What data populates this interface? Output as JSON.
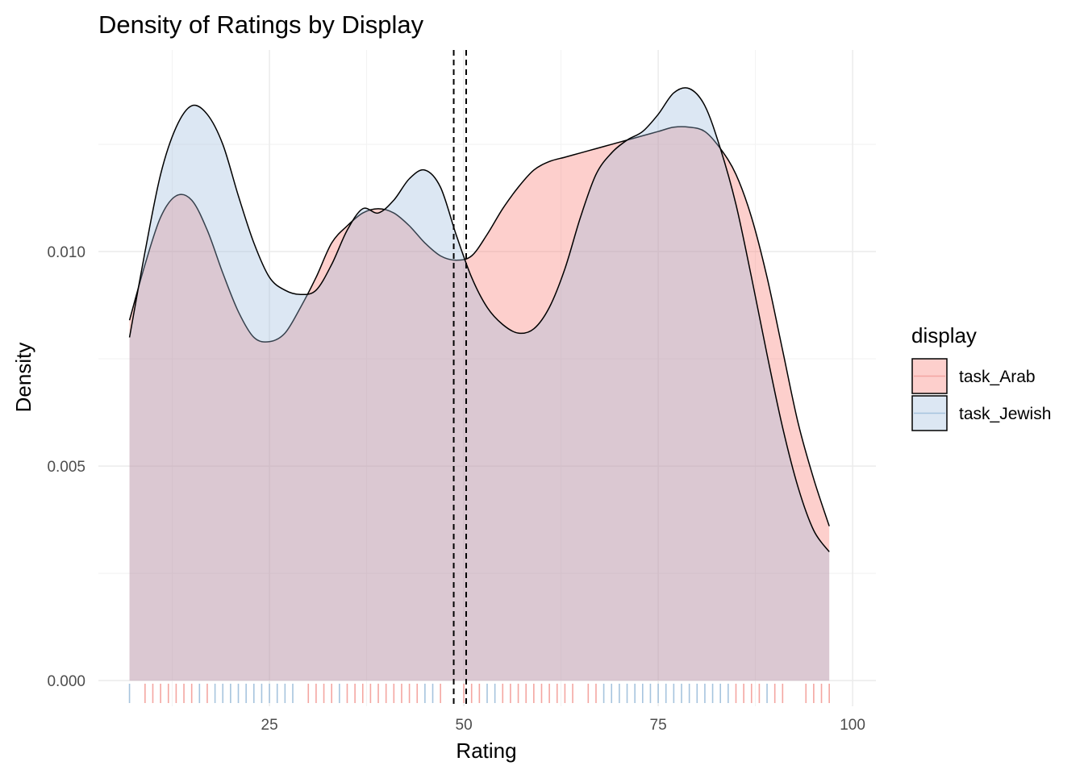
{
  "chart_data": {
    "type": "area",
    "title": "Density of Ratings by Display",
    "xlabel": "Rating",
    "ylabel": "Density",
    "xlim": [
      3,
      103
    ],
    "ylim": [
      -0.0006,
      0.0147
    ],
    "x_ticks": [
      25,
      50,
      75,
      100
    ],
    "x_tick_labels": [
      "25",
      "50",
      "75",
      "100"
    ],
    "y_ticks": [
      0.0,
      0.005,
      0.01
    ],
    "y_tick_labels": [
      "0.000",
      "0.005",
      "0.010"
    ],
    "grid": true,
    "legend": {
      "title": "display",
      "position": "right",
      "entries": [
        "task_Arab",
        "task_Jewish"
      ]
    },
    "mean_lines": [
      48.7,
      50.3
    ],
    "series": [
      {
        "name": "task_Arab",
        "fill": "#f8766d",
        "rug_color": "#f4a6a1",
        "x": [
          7.0,
          9.0,
          11.0,
          13.0,
          15.0,
          17.0,
          19.0,
          21.0,
          23.0,
          25.0,
          27.0,
          29.0,
          31.0,
          33.0,
          35.0,
          37.0,
          39.0,
          41.0,
          43.0,
          45.0,
          47.0,
          49.0,
          51.0,
          53.0,
          55.0,
          57.0,
          59.0,
          61.0,
          63.0,
          65.0,
          67.0,
          69.0,
          71.0,
          73.0,
          75.0,
          77.0,
          79.0,
          81.0,
          83.0,
          85.0,
          87.0,
          89.0,
          91.0,
          93.0,
          95.0,
          97.0
        ],
        "y": [
          0.0084,
          0.0097,
          0.0108,
          0.0113,
          0.0112,
          0.0105,
          0.0095,
          0.0086,
          0.008,
          0.0079,
          0.0081,
          0.0087,
          0.0094,
          0.0102,
          0.0106,
          0.0109,
          0.011,
          0.0109,
          0.0106,
          0.0102,
          0.0099,
          0.0098,
          0.0099,
          0.0104,
          0.011,
          0.0115,
          0.0119,
          0.0121,
          0.0122,
          0.0123,
          0.0124,
          0.0125,
          0.0126,
          0.0127,
          0.0128,
          0.0129,
          0.0129,
          0.0128,
          0.0124,
          0.0118,
          0.0108,
          0.0094,
          0.0077,
          0.006,
          0.0047,
          0.0036
        ]
      },
      {
        "name": "task_Jewish",
        "fill": "#9ab9dc",
        "rug_color": "#a6c4de",
        "x": [
          7.0,
          9.0,
          11.0,
          13.0,
          15.0,
          17.0,
          19.0,
          21.0,
          23.0,
          25.0,
          27.0,
          29.0,
          31.0,
          33.0,
          35.0,
          37.0,
          39.0,
          41.0,
          43.0,
          45.0,
          47.0,
          49.0,
          51.0,
          53.0,
          55.0,
          57.0,
          59.0,
          61.0,
          63.0,
          65.0,
          67.0,
          69.0,
          71.0,
          73.0,
          75.0,
          77.0,
          79.0,
          81.0,
          83.0,
          85.0,
          87.0,
          89.0,
          91.0,
          93.0,
          95.0,
          97.0
        ],
        "y": [
          0.008,
          0.01,
          0.0118,
          0.0129,
          0.0134,
          0.0132,
          0.0125,
          0.0113,
          0.0102,
          0.0094,
          0.0091,
          0.009,
          0.0091,
          0.0097,
          0.0105,
          0.011,
          0.0109,
          0.0112,
          0.0117,
          0.0119,
          0.0115,
          0.0104,
          0.0094,
          0.0087,
          0.0083,
          0.0081,
          0.0082,
          0.0087,
          0.0096,
          0.0108,
          0.0118,
          0.0123,
          0.0126,
          0.0128,
          0.0132,
          0.0137,
          0.0138,
          0.0134,
          0.0124,
          0.0111,
          0.0094,
          0.0076,
          0.0059,
          0.0045,
          0.0035,
          0.003
        ]
      }
    ],
    "rug": [
      {
        "x": 7,
        "series": "task_Jewish"
      },
      {
        "x": 9,
        "series": "task_Arab"
      },
      {
        "x": 10,
        "series": "task_Arab"
      },
      {
        "x": 11,
        "series": "task_Arab"
      },
      {
        "x": 12,
        "series": "task_Arab"
      },
      {
        "x": 13,
        "series": "task_Arab"
      },
      {
        "x": 14,
        "series": "task_Arab"
      },
      {
        "x": 15,
        "series": "task_Arab"
      },
      {
        "x": 16,
        "series": "task_Jewish"
      },
      {
        "x": 17,
        "series": "task_Arab"
      },
      {
        "x": 18,
        "series": "task_Jewish"
      },
      {
        "x": 19,
        "series": "task_Jewish"
      },
      {
        "x": 20,
        "series": "task_Jewish"
      },
      {
        "x": 21,
        "series": "task_Jewish"
      },
      {
        "x": 22,
        "series": "task_Jewish"
      },
      {
        "x": 23,
        "series": "task_Jewish"
      },
      {
        "x": 24,
        "series": "task_Jewish"
      },
      {
        "x": 25,
        "series": "task_Jewish"
      },
      {
        "x": 26,
        "series": "task_Jewish"
      },
      {
        "x": 27,
        "series": "task_Jewish"
      },
      {
        "x": 28,
        "series": "task_Jewish"
      },
      {
        "x": 30,
        "series": "task_Arab"
      },
      {
        "x": 31,
        "series": "task_Arab"
      },
      {
        "x": 32,
        "series": "task_Arab"
      },
      {
        "x": 33,
        "series": "task_Arab"
      },
      {
        "x": 34,
        "series": "task_Jewish"
      },
      {
        "x": 35,
        "series": "task_Arab"
      },
      {
        "x": 36,
        "series": "task_Arab"
      },
      {
        "x": 37,
        "series": "task_Arab"
      },
      {
        "x": 38,
        "series": "task_Arab"
      },
      {
        "x": 39,
        "series": "task_Arab"
      },
      {
        "x": 40,
        "series": "task_Arab"
      },
      {
        "x": 41,
        "series": "task_Arab"
      },
      {
        "x": 42,
        "series": "task_Arab"
      },
      {
        "x": 43,
        "series": "task_Arab"
      },
      {
        "x": 44,
        "series": "task_Arab"
      },
      {
        "x": 45,
        "series": "task_Jewish"
      },
      {
        "x": 46,
        "series": "task_Jewish"
      },
      {
        "x": 47,
        "series": "task_Arab"
      },
      {
        "x": 50,
        "series": "task_Arab"
      },
      {
        "x": 51,
        "series": "task_Arab"
      },
      {
        "x": 52,
        "series": "task_Arab"
      },
      {
        "x": 53,
        "series": "task_Jewish"
      },
      {
        "x": 54,
        "series": "task_Jewish"
      },
      {
        "x": 55,
        "series": "task_Arab"
      },
      {
        "x": 56,
        "series": "task_Arab"
      },
      {
        "x": 57,
        "series": "task_Arab"
      },
      {
        "x": 58,
        "series": "task_Arab"
      },
      {
        "x": 59,
        "series": "task_Arab"
      },
      {
        "x": 60,
        "series": "task_Arab"
      },
      {
        "x": 61,
        "series": "task_Arab"
      },
      {
        "x": 62,
        "series": "task_Arab"
      },
      {
        "x": 63,
        "series": "task_Arab"
      },
      {
        "x": 64,
        "series": "task_Arab"
      },
      {
        "x": 66,
        "series": "task_Arab"
      },
      {
        "x": 67,
        "series": "task_Arab"
      },
      {
        "x": 68,
        "series": "task_Jewish"
      },
      {
        "x": 69,
        "series": "task_Jewish"
      },
      {
        "x": 70,
        "series": "task_Jewish"
      },
      {
        "x": 71,
        "series": "task_Jewish"
      },
      {
        "x": 72,
        "series": "task_Jewish"
      },
      {
        "x": 73,
        "series": "task_Jewish"
      },
      {
        "x": 74,
        "series": "task_Jewish"
      },
      {
        "x": 75,
        "series": "task_Jewish"
      },
      {
        "x": 76,
        "series": "task_Jewish"
      },
      {
        "x": 77,
        "series": "task_Jewish"
      },
      {
        "x": 78,
        "series": "task_Jewish"
      },
      {
        "x": 79,
        "series": "task_Jewish"
      },
      {
        "x": 80,
        "series": "task_Jewish"
      },
      {
        "x": 81,
        "series": "task_Jewish"
      },
      {
        "x": 82,
        "series": "task_Jewish"
      },
      {
        "x": 83,
        "series": "task_Jewish"
      },
      {
        "x": 84,
        "series": "task_Jewish"
      },
      {
        "x": 85,
        "series": "task_Arab"
      },
      {
        "x": 86,
        "series": "task_Arab"
      },
      {
        "x": 87,
        "series": "task_Arab"
      },
      {
        "x": 88,
        "series": "task_Arab"
      },
      {
        "x": 89,
        "series": "task_Jewish"
      },
      {
        "x": 90,
        "series": "task_Arab"
      },
      {
        "x": 91,
        "series": "task_Arab"
      },
      {
        "x": 94,
        "series": "task_Arab"
      },
      {
        "x": 95,
        "series": "task_Arab"
      },
      {
        "x": 96,
        "series": "task_Arab"
      },
      {
        "x": 97,
        "series": "task_Arab"
      }
    ]
  }
}
